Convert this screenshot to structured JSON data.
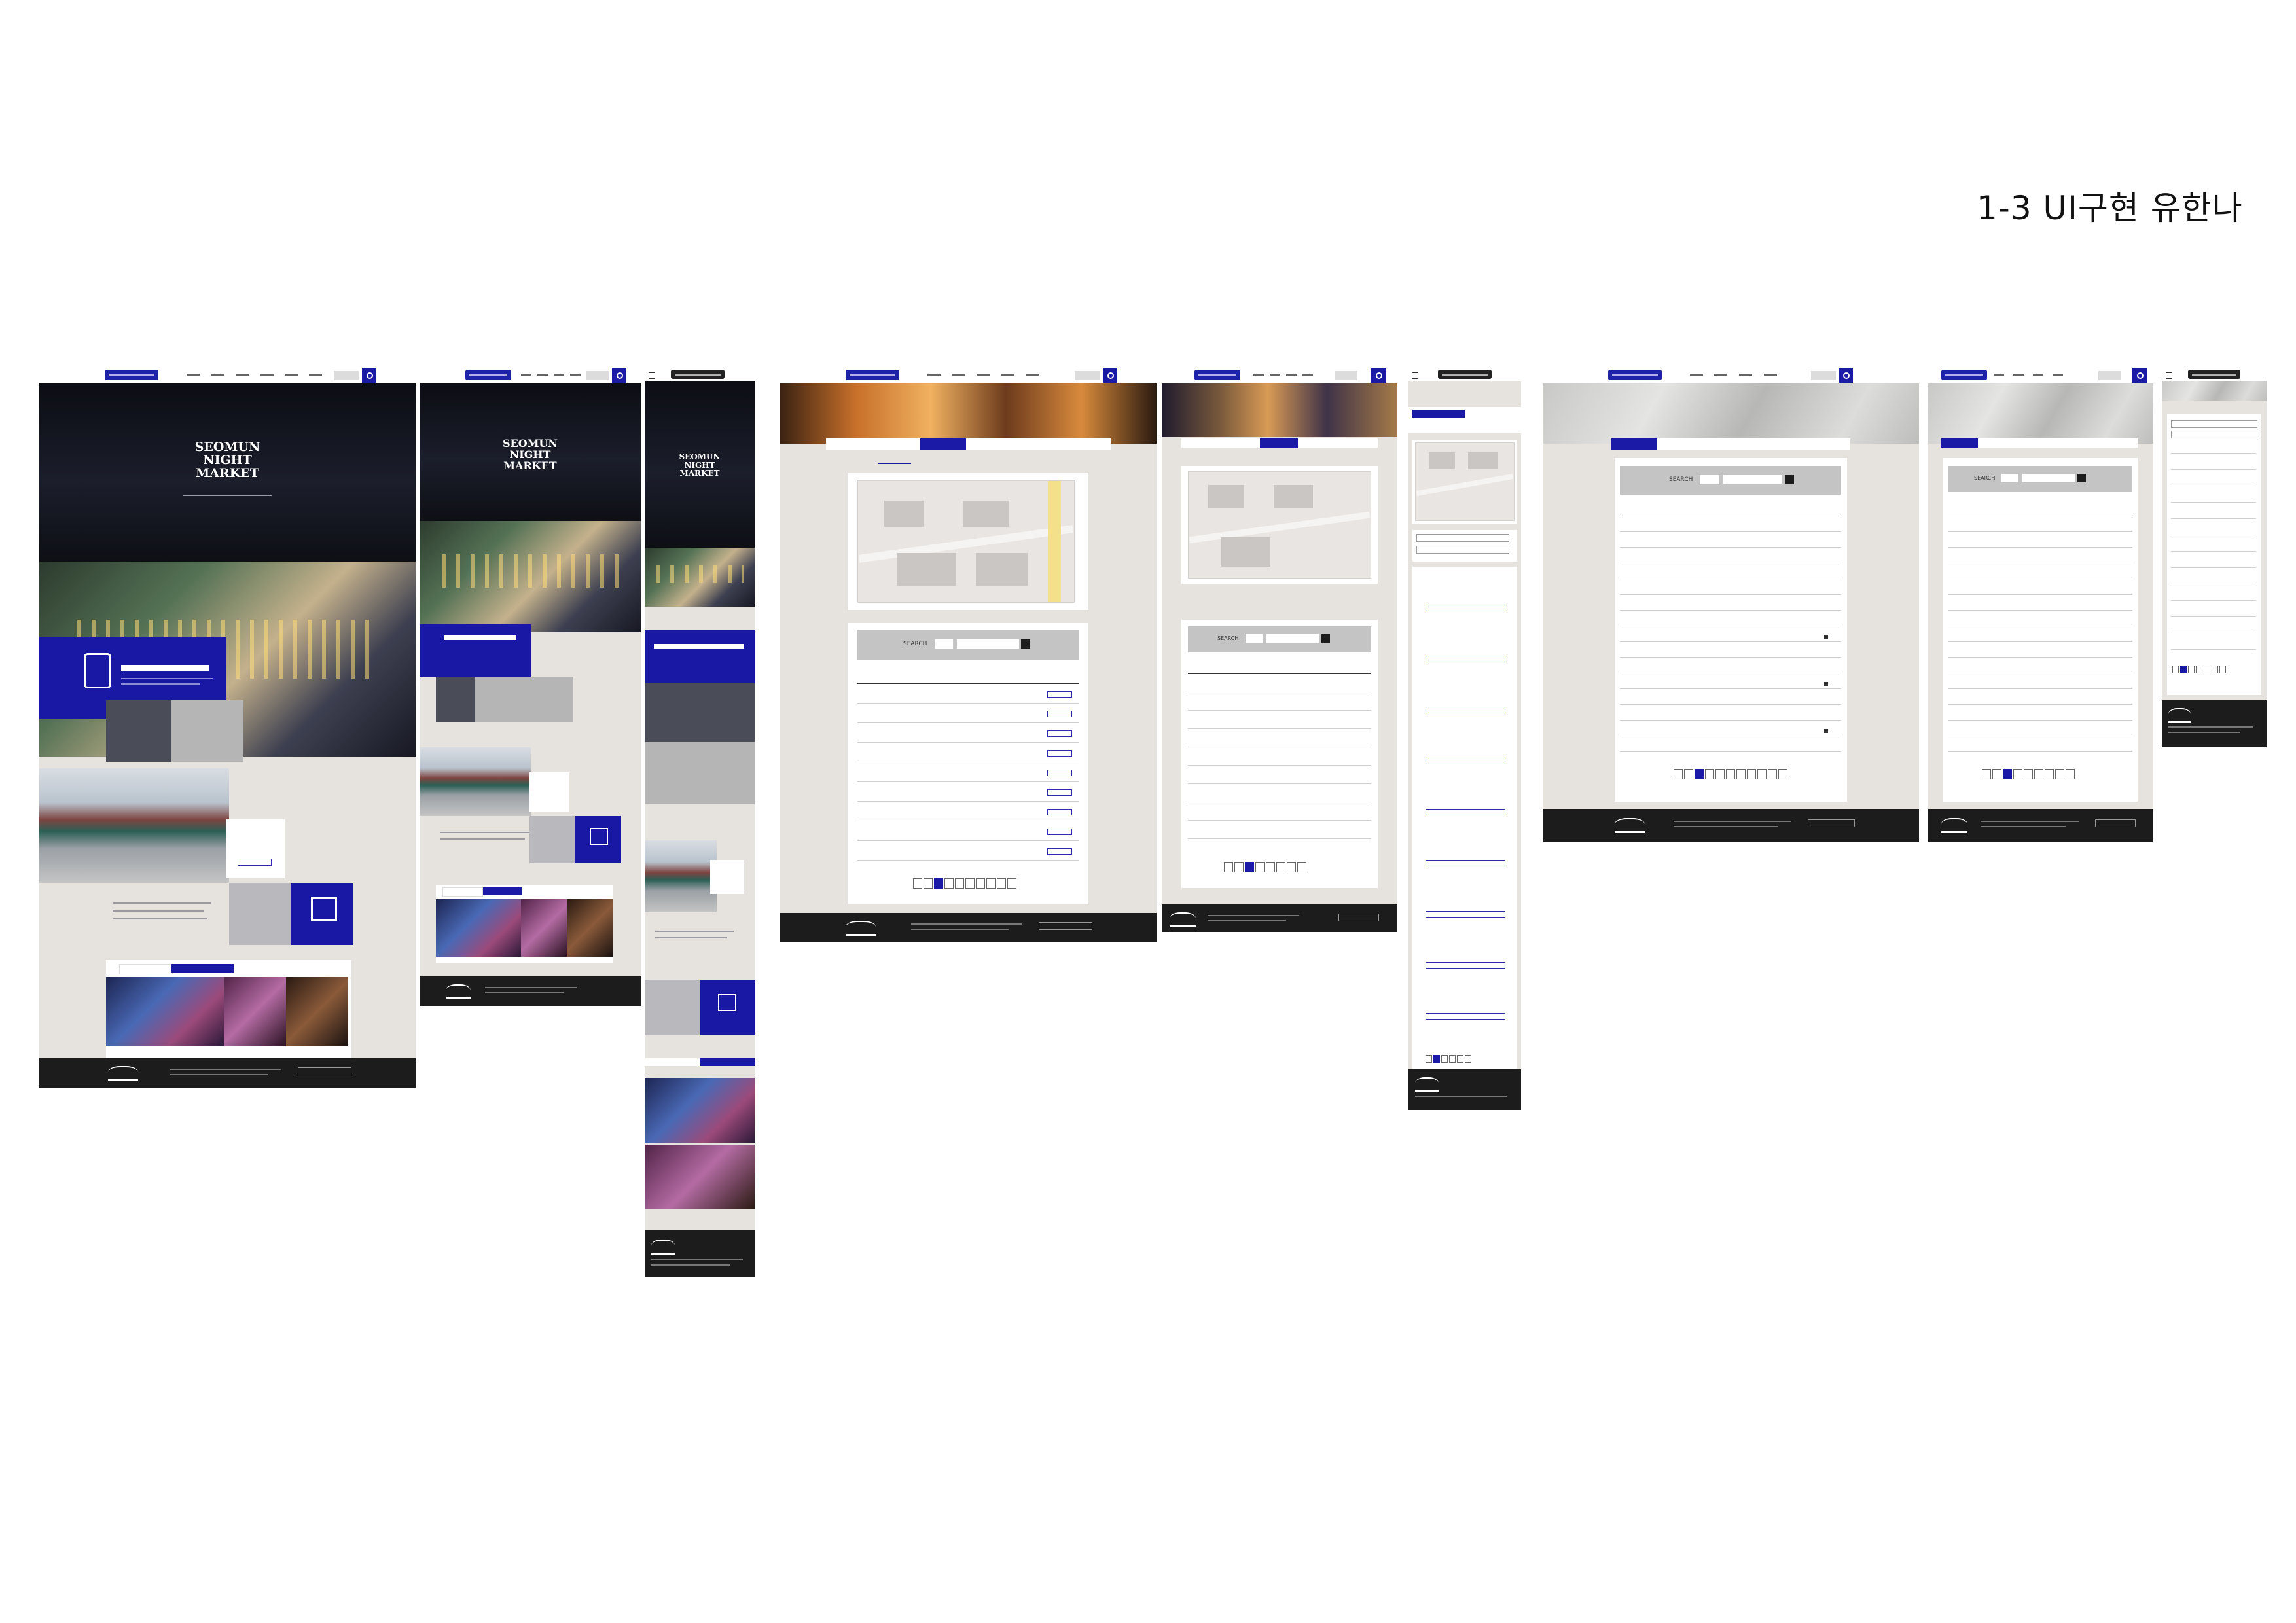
{
  "board": {
    "title": "1-3 UI구현 유한나"
  },
  "hero": {
    "title_line1": "SEOMUN",
    "title_line2": "NIGHT",
    "title_line3": "MARKET"
  },
  "search_bar": {
    "label": "SEARCH"
  },
  "colors": {
    "accent": "#1a1aa6",
    "footer": "#1c1c1c",
    "canvas": "#e6e3df"
  }
}
